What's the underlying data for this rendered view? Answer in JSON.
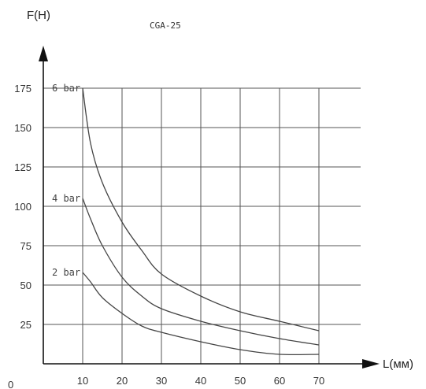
{
  "chart_data": {
    "type": "line",
    "title": "CGA-25",
    "xlabel": "L(мм)",
    "ylabel": "F(H)",
    "origin_label": "0",
    "x_ticks": [
      10,
      20,
      30,
      40,
      50,
      60,
      70
    ],
    "y_ticks": [
      25,
      50,
      75,
      100,
      125,
      150,
      175
    ],
    "xlim": [
      0,
      70
    ],
    "ylim": [
      0,
      175
    ],
    "grid": true,
    "series": [
      {
        "name": "6 bar",
        "x": [
          10,
          12,
          15,
          20,
          25,
          30,
          40,
          50,
          60,
          70
        ],
        "y": [
          175,
          140,
          115,
          90,
          72,
          57,
          43,
          33,
          27,
          21
        ]
      },
      {
        "name": "4 bar",
        "x": [
          10,
          12,
          15,
          20,
          25,
          30,
          40,
          50,
          60,
          70
        ],
        "y": [
          105,
          92,
          75,
          55,
          43,
          35,
          27,
          21,
          16,
          12
        ]
      },
      {
        "name": "2 bar",
        "x": [
          10,
          12,
          15,
          20,
          25,
          30,
          40,
          50,
          60,
          70
        ],
        "y": [
          58,
          52,
          42,
          32,
          24,
          20,
          14,
          9,
          6,
          6
        ]
      }
    ]
  }
}
